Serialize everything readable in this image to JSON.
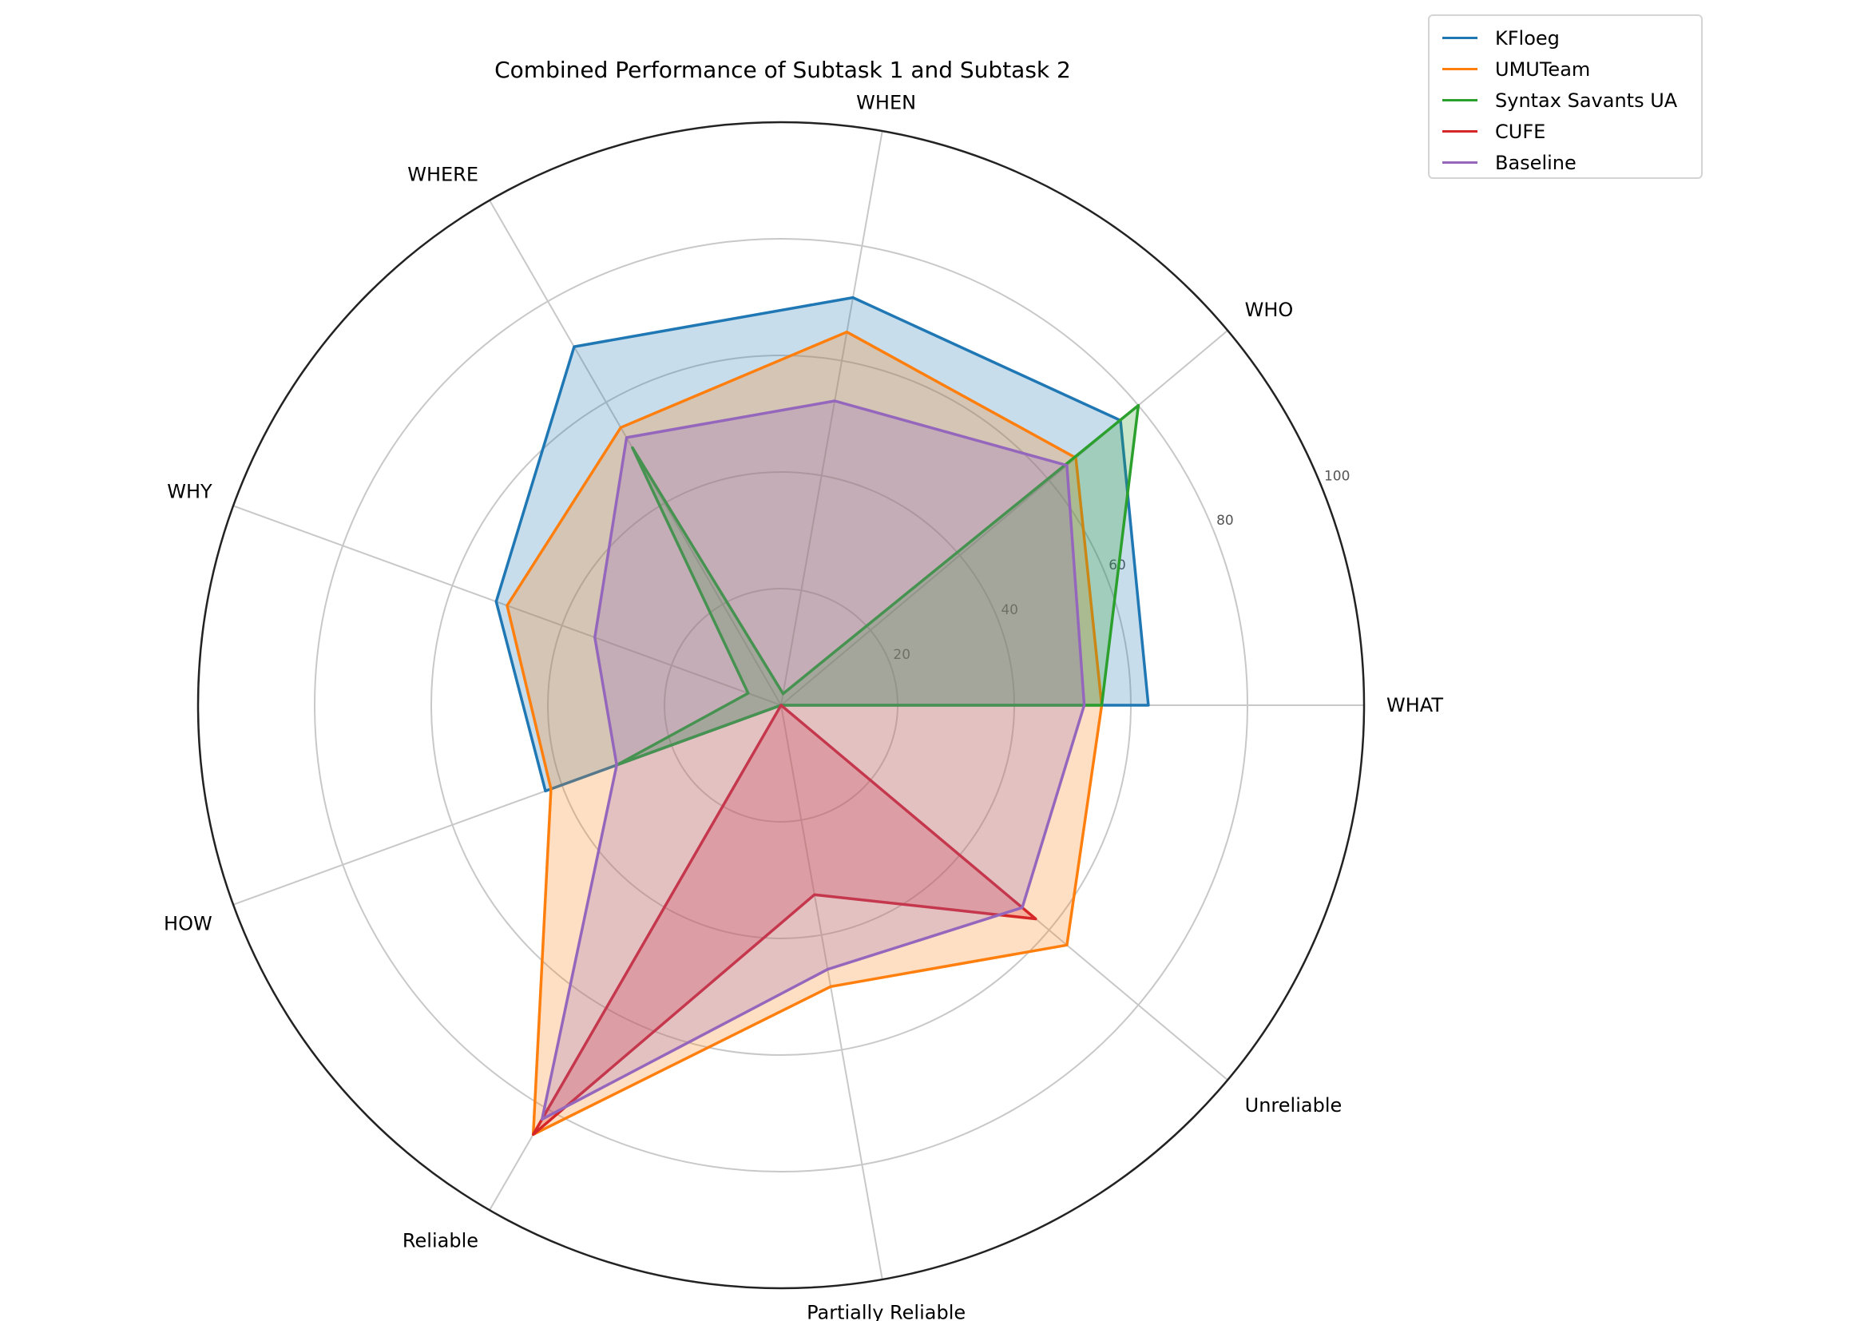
{
  "chart_data": {
    "type": "radar",
    "title": "Combined Performance of Subtask 1 and Subtask 2",
    "categories": [
      "WHAT",
      "WHO",
      "WHEN",
      "WHERE",
      "WHY",
      "HOW",
      "Reliable",
      "Partially Reliable",
      "Unreliable"
    ],
    "rlim": [
      0,
      100
    ],
    "rticks": [
      20,
      40,
      60,
      80,
      100
    ],
    "rtick_labels": [
      "20",
      "40",
      "60",
      "80",
      "100"
    ],
    "grid": true,
    "legend_position": "top-right (outside plot)",
    "series": [
      {
        "name": "KFloeg",
        "color": "#1f77b4",
        "values": [
          63,
          76,
          71,
          71,
          52,
          43,
          0,
          0,
          0
        ]
      },
      {
        "name": "UMUTeam",
        "color": "#ff7f0e",
        "values": [
          55,
          66,
          65,
          55,
          50,
          42,
          85,
          49,
          64
        ]
      },
      {
        "name": "Syntax Savants UA",
        "color": "#2ca02c",
        "values": [
          55,
          80,
          2,
          51,
          6,
          30,
          0,
          0,
          0
        ]
      },
      {
        "name": "CUFE",
        "color": "#d62728",
        "values": [
          0,
          0,
          0,
          0,
          0,
          0,
          85,
          33,
          57
        ]
      },
      {
        "name": "Baseline",
        "color": "#9467bd",
        "values": [
          52,
          64,
          53,
          53,
          34,
          30,
          82,
          46,
          54
        ]
      }
    ]
  }
}
